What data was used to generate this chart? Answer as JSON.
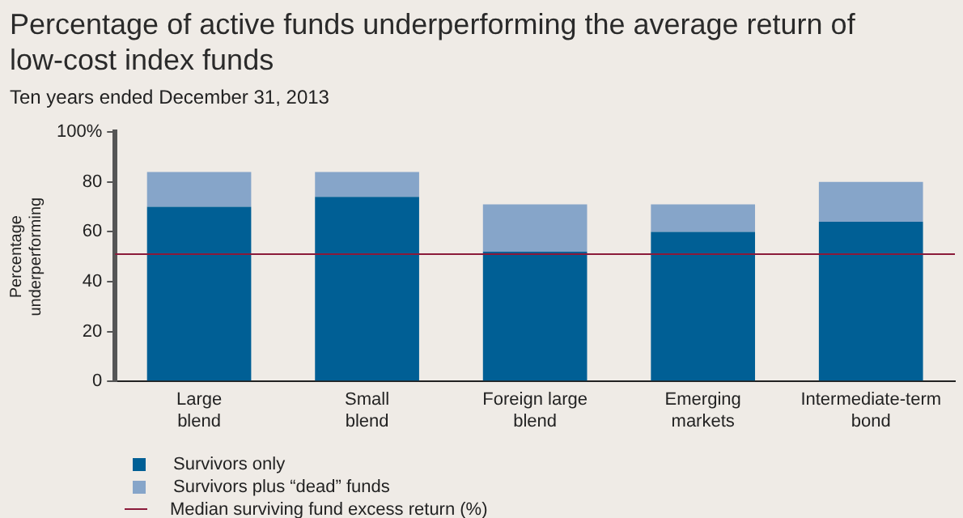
{
  "chart_data": {
    "type": "bar",
    "title": "Percentage of active funds underperforming the average return of low-cost index funds",
    "subtitle": "Ten years ended December 31, 2013",
    "ylabel": "Percentage underperforming",
    "categories": [
      "Large blend",
      "Small blend",
      "Foreign large blend",
      "Emerging markets",
      "Intermediate-term bond"
    ],
    "stacked": true,
    "series": [
      {
        "name": "Survivors only",
        "color": "#005f95",
        "values": [
          70,
          74,
          52,
          60,
          64
        ]
      },
      {
        "name": "Survivors plus “dead” funds",
        "color": "#86a5c9",
        "values": [
          14,
          10,
          19,
          11,
          16
        ]
      }
    ],
    "ylim": [
      0,
      100
    ],
    "yticks": [
      0,
      20,
      40,
      60,
      80,
      {
        "value": 100,
        "label": "100%"
      }
    ],
    "ref_lines": [
      {
        "axis": "y",
        "value": 51,
        "label": "Median surviving fund excess return (%)",
        "color": "#8b1a3a"
      }
    ],
    "grid": false,
    "legend": "bottom"
  }
}
